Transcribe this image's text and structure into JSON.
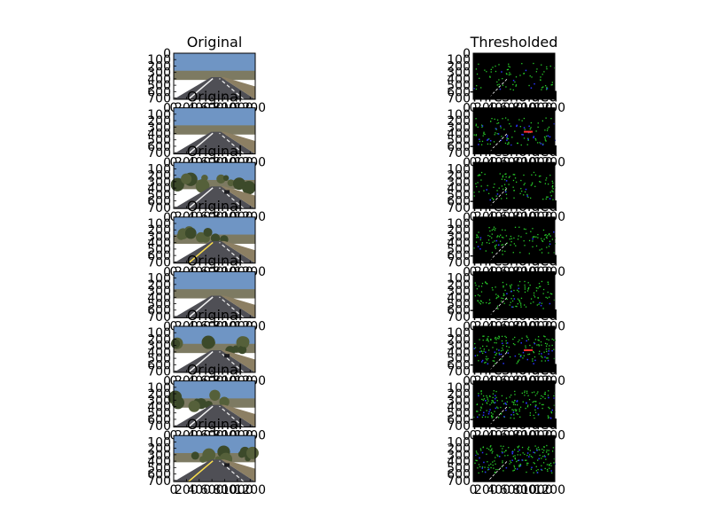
{
  "figure": {
    "columns": [
      {
        "key": "original",
        "title": "Original"
      },
      {
        "key": "thresholded",
        "title": "Thresholded"
      }
    ],
    "rows": 8
  },
  "chart_data": {
    "type": "image-grid",
    "ylim": [
      720,
      0
    ],
    "xlim": [
      0,
      1280
    ],
    "y_ticks": [
      "0",
      "100",
      "200",
      "300",
      "400",
      "500",
      "600",
      "700"
    ],
    "x_ticks": [
      "0",
      "200",
      "400",
      "600",
      "800",
      "1000",
      "1200"
    ],
    "panels": [
      {
        "row": 1,
        "col": "original",
        "title": "Original"
      },
      {
        "row": 1,
        "col": "thresholded",
        "title": "Thresholded"
      },
      {
        "row": 2,
        "col": "original",
        "title": "Original"
      },
      {
        "row": 2,
        "col": "thresholded",
        "title": "Thresholded"
      },
      {
        "row": 3,
        "col": "original",
        "title": "Original"
      },
      {
        "row": 3,
        "col": "thresholded",
        "title": "Thresholded"
      },
      {
        "row": 4,
        "col": "original",
        "title": "Original"
      },
      {
        "row": 4,
        "col": "thresholded",
        "title": "Thresholded"
      },
      {
        "row": 5,
        "col": "original",
        "title": "Original"
      },
      {
        "row": 5,
        "col": "thresholded",
        "title": "Thresholded"
      },
      {
        "row": 6,
        "col": "original",
        "title": "Original"
      },
      {
        "row": 6,
        "col": "thresholded",
        "title": "Thresholded"
      },
      {
        "row": 7,
        "col": "original",
        "title": "Original"
      },
      {
        "row": 7,
        "col": "thresholded",
        "title": "Thresholded"
      },
      {
        "row": 8,
        "col": "original",
        "title": "Original"
      },
      {
        "row": 8,
        "col": "thresholded",
        "title": "Thresholded"
      }
    ]
  },
  "colors": {
    "sky": "#6f95c4",
    "hills": "#7d7a62",
    "road": "#4f4f55",
    "lane_white": "#f2f2f2",
    "lane_yellow": "#fde04c",
    "threshold_bg": "#000000",
    "threshold_green": "#29d12a",
    "threshold_blue": "#2b35ff",
    "threshold_red": "#ff3030",
    "threshold_white": "#ffffff"
  }
}
